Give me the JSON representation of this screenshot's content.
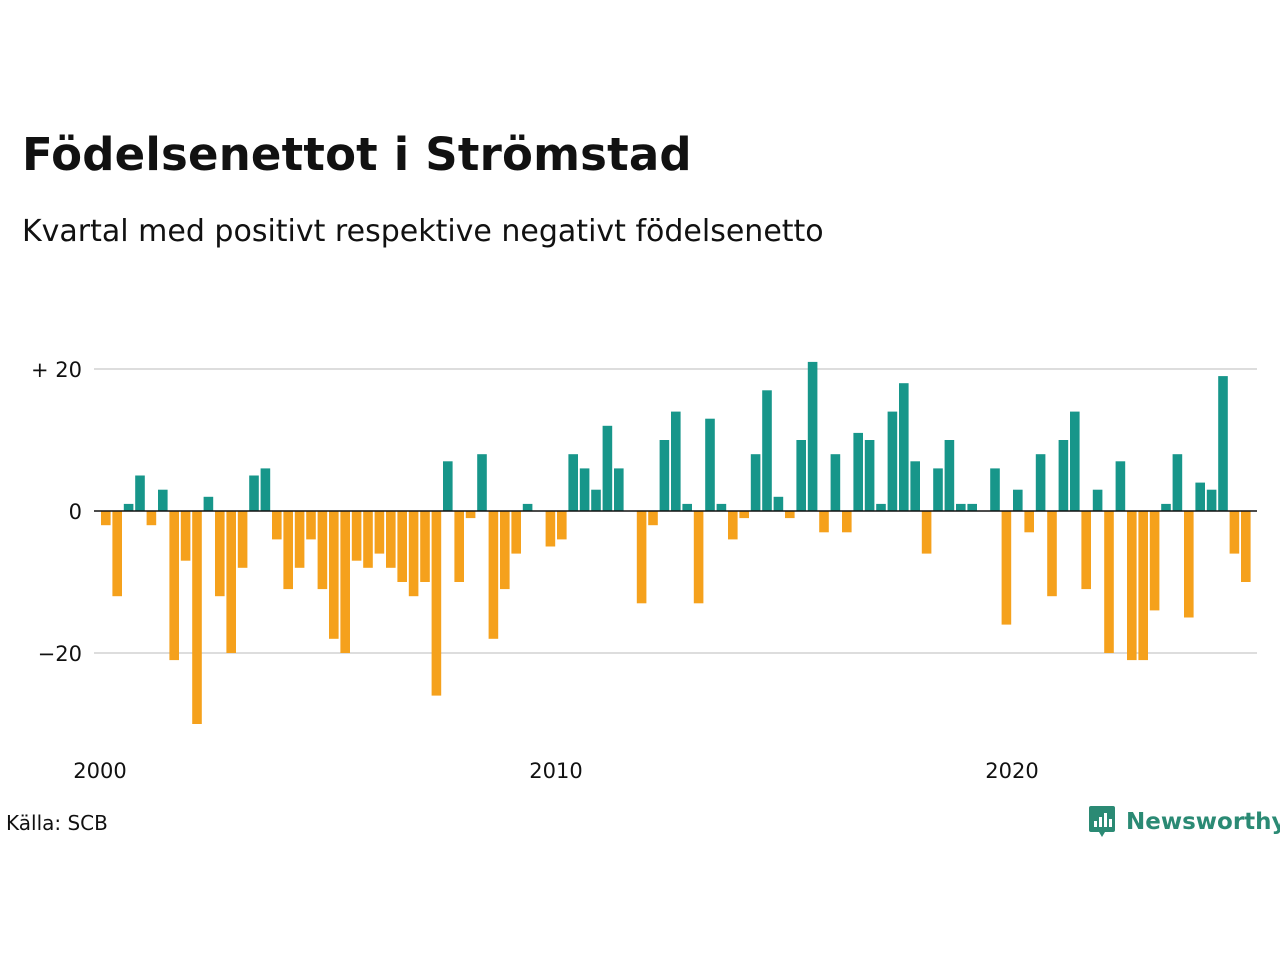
{
  "title": "Födelsenettot i Strömstad",
  "subtitle": "Kvartal med positivt respektive negativt födelsenetto",
  "source": "Källa: SCB",
  "brand": {
    "name": "Newsworthy",
    "icon": "newsworthy-logo-icon"
  },
  "colors": {
    "positive": "#17968a",
    "negative": "#f5a11c",
    "grid": "#dddddd",
    "zero": "#111111",
    "brand": "#2b8a74"
  },
  "chart_data": {
    "type": "bar",
    "title": "Födelsenettot i Strömstad",
    "subtitle": "Kvartal med positivt respektive negativt födelsenetto",
    "start_year": 2000,
    "start_quarter": 1,
    "periods_per_year": 4,
    "values": [
      -2,
      -12,
      1,
      5,
      -2,
      3,
      -21,
      -7,
      -30,
      2,
      -12,
      -20,
      -8,
      5,
      6,
      -4,
      -11,
      -8,
      -4,
      -11,
      -18,
      -20,
      -7,
      -8,
      -6,
      -8,
      -10,
      -12,
      -10,
      -26,
      7,
      -10,
      -1,
      8,
      -18,
      -11,
      -6,
      1,
      0,
      -5,
      -4,
      8,
      6,
      3,
      12,
      6,
      0,
      -13,
      -2,
      10,
      14,
      1,
      -13,
      13,
      1,
      -4,
      -1,
      8,
      17,
      2,
      -1,
      10,
      21,
      -3,
      8,
      -3,
      11,
      10,
      1,
      14,
      18,
      7,
      -6,
      6,
      10,
      1,
      1,
      0,
      6,
      -16,
      3,
      -3,
      8,
      -12,
      10,
      14,
      -11,
      3,
      -20,
      7,
      -21,
      -21,
      -14,
      1,
      8,
      -15,
      4,
      3,
      19,
      -6,
      -10
    ],
    "ylim": [
      -30,
      21
    ],
    "yticks": [
      {
        "value": 20,
        "label": "+ 20"
      },
      {
        "value": 0,
        "label": "0"
      },
      {
        "value": -20,
        "label": "−20"
      }
    ],
    "xticks": [
      {
        "value": 2000,
        "label": "2000"
      },
      {
        "value": 2010,
        "label": "2010"
      },
      {
        "value": 2020,
        "label": "2020"
      }
    ],
    "xlabel": "",
    "ylabel": "",
    "grid": true,
    "legend": "none"
  }
}
